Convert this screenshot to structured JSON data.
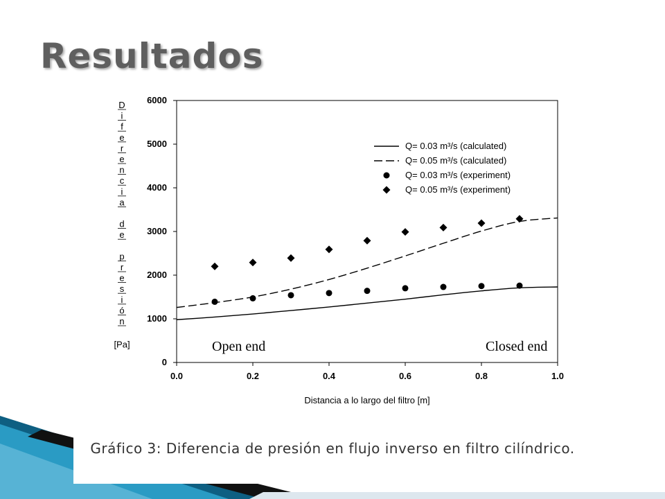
{
  "slide": {
    "title": "Resultados",
    "caption": "Gráfico 3: Diferencia de presión en flujo inverso en filtro cilíndrico."
  },
  "colors": {
    "title": "#5f5f5f",
    "accent_teal": "#2a9bc4",
    "accent_dark": "#0e5f82",
    "series": "#000000"
  },
  "chart_data": {
    "type": "line",
    "xlabel": "Distancia a lo largo del filtro [m]",
    "ylabel_chars": [
      "D",
      "i",
      "f",
      "e",
      "r",
      "e",
      "n",
      "c",
      "i",
      "a",
      "",
      "d",
      "e",
      "",
      "p",
      "r",
      "e",
      "s",
      "i",
      "ó",
      "n",
      "",
      "[Pa]"
    ],
    "xlim": [
      0.0,
      1.0
    ],
    "ylim": [
      0,
      6000
    ],
    "xticks": [
      "0.0",
      "0.2",
      "0.4",
      "0.6",
      "0.8",
      "1.0"
    ],
    "yticks": [
      "0",
      "1000",
      "2000",
      "3000",
      "4000",
      "5000",
      "6000"
    ],
    "grid": false,
    "legend_position": "top-right",
    "annotations": [
      {
        "text": "Open end"
      },
      {
        "text": "Closed end"
      }
    ],
    "series": [
      {
        "name": "Q= 0.03 m³/s (calculated)",
        "style": "solid-line",
        "x": [
          0,
          0.1,
          0.2,
          0.3,
          0.4,
          0.5,
          0.6,
          0.7,
          0.8,
          0.9,
          1.0
        ],
        "y": [
          980,
          1040,
          1110,
          1190,
          1270,
          1360,
          1450,
          1550,
          1640,
          1710,
          1730
        ]
      },
      {
        "name": "Q= 0.05 m³/s (calculated)",
        "style": "dashed-line",
        "x": [
          0,
          0.1,
          0.2,
          0.3,
          0.4,
          0.5,
          0.6,
          0.7,
          0.8,
          0.9,
          1.0
        ],
        "y": [
          1260,
          1370,
          1500,
          1680,
          1900,
          2160,
          2440,
          2730,
          3010,
          3230,
          3310
        ]
      },
      {
        "name": "Q= 0.03 m³/s (experiment)",
        "style": "circle-marker",
        "x": [
          0.1,
          0.2,
          0.3,
          0.4,
          0.5,
          0.6,
          0.7,
          0.8,
          0.9
        ],
        "y": [
          1390,
          1470,
          1540,
          1590,
          1640,
          1700,
          1730,
          1750,
          1760
        ]
      },
      {
        "name": "Q= 0.05 m³/s (experiment)",
        "style": "diamond-marker",
        "x": [
          0.1,
          0.2,
          0.3,
          0.4,
          0.5,
          0.6,
          0.7,
          0.8,
          0.9
        ],
        "y": [
          2200,
          2290,
          2390,
          2590,
          2790,
          2990,
          3090,
          3190,
          3290
        ]
      }
    ]
  }
}
